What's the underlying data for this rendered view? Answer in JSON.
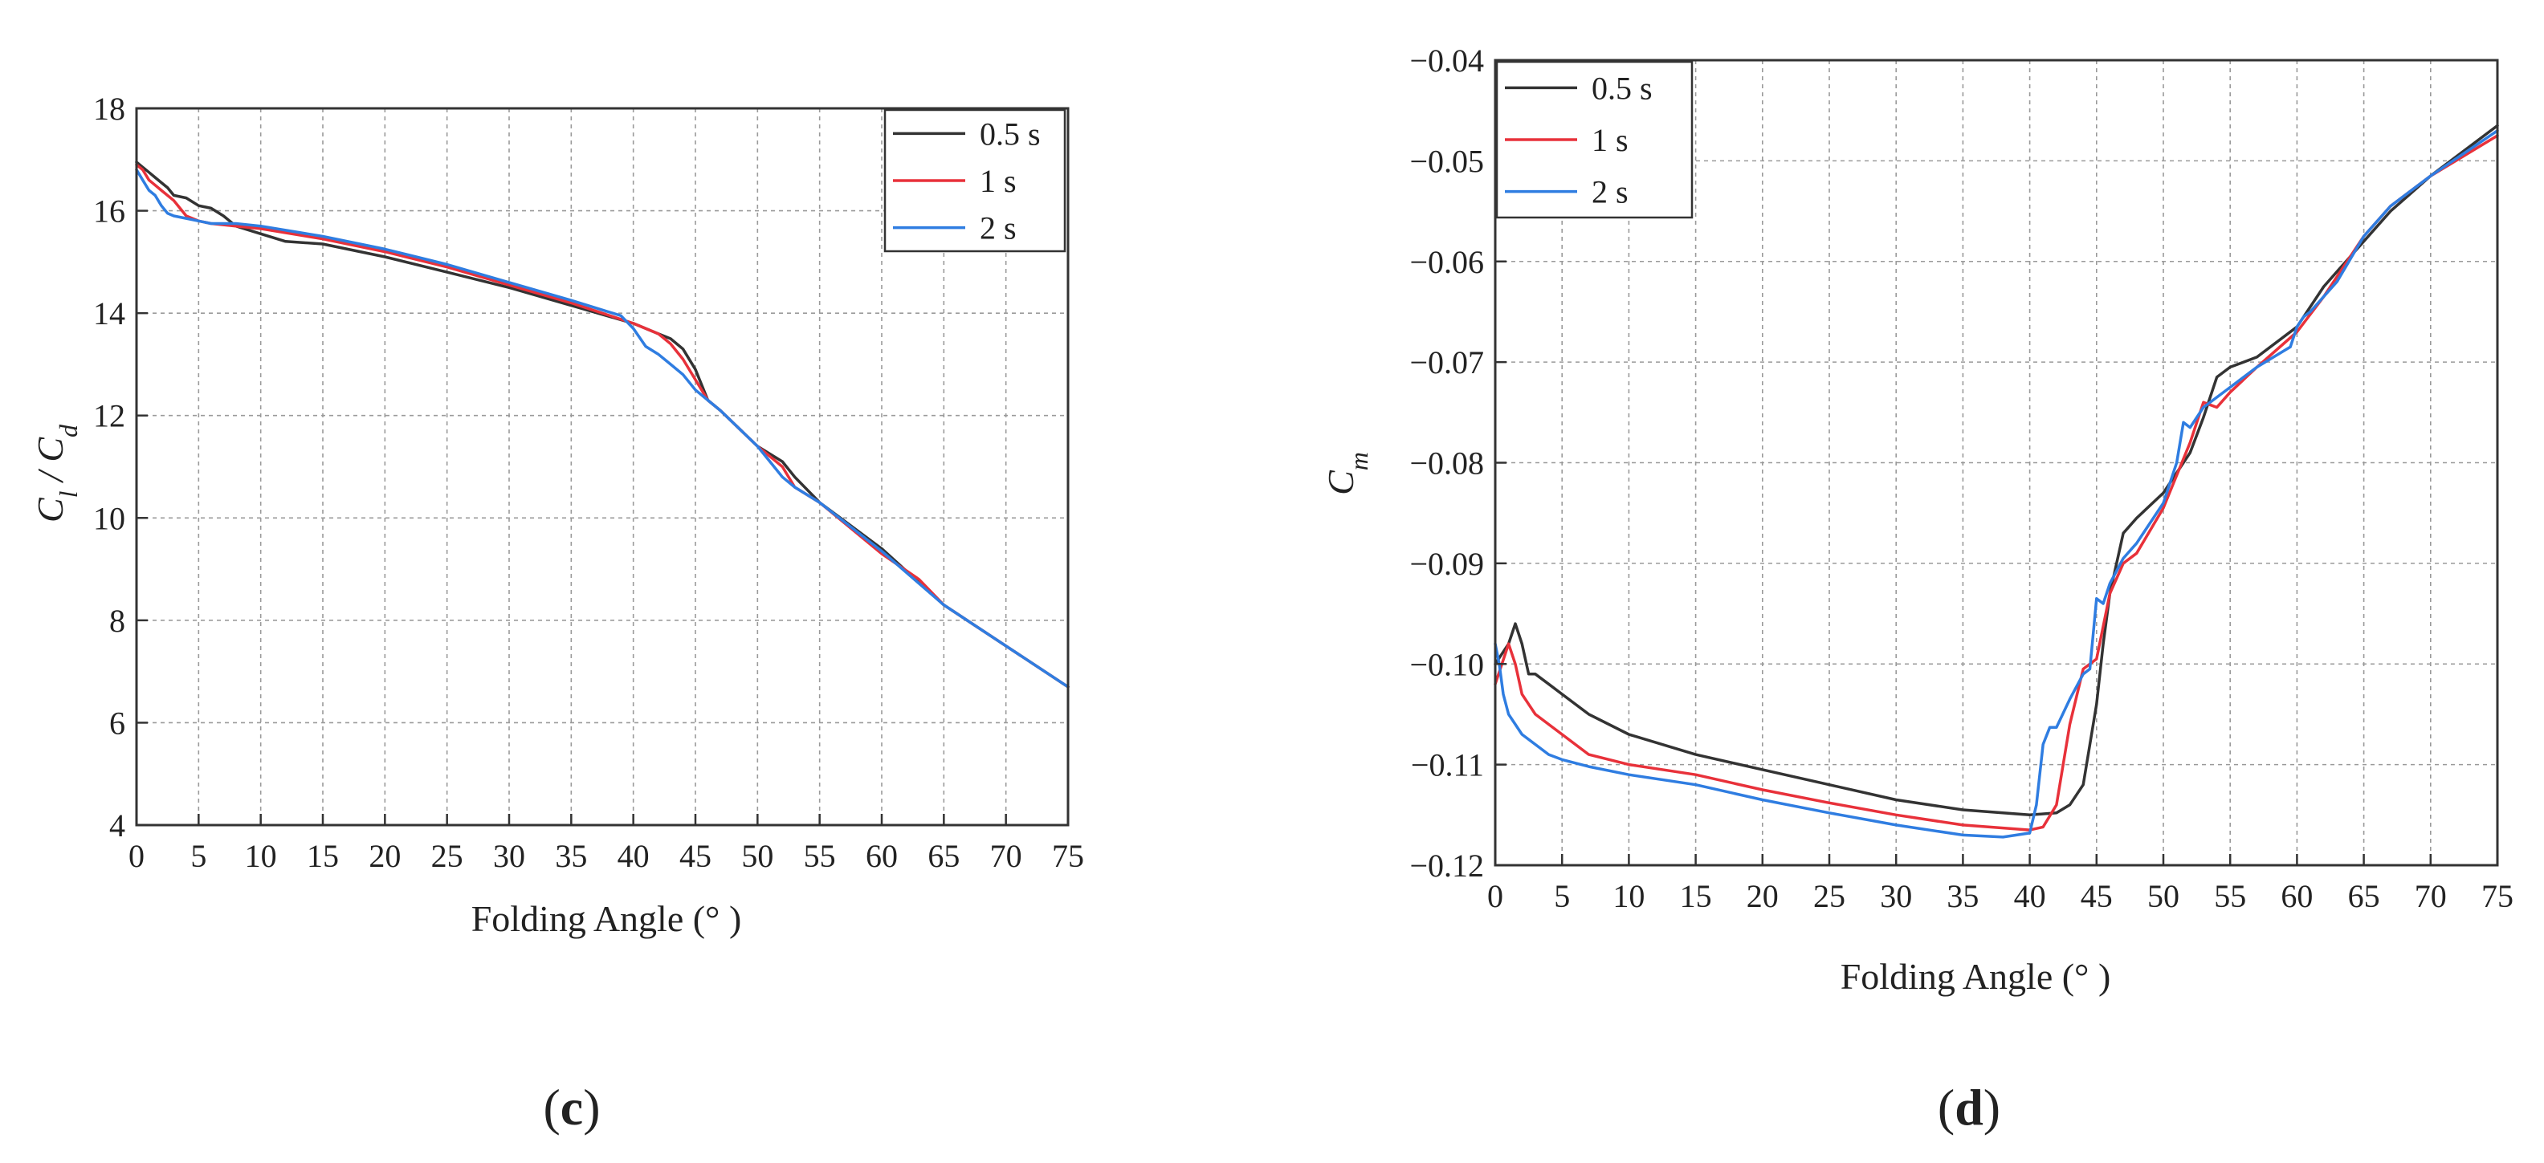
{
  "chart_data": [
    {
      "type": "line",
      "panel_label": "c",
      "xlabel": "Folding Angle (° )",
      "ylabel": "Cl / Cd",
      "ylabel_main": "C",
      "ylabel_sub1": "l",
      "ylabel_sep": " / C",
      "ylabel_sub2": "d",
      "xlim": [
        0,
        75
      ],
      "ylim": [
        4,
        18
      ],
      "xticks": [
        0,
        5,
        10,
        15,
        20,
        25,
        30,
        35,
        40,
        45,
        50,
        55,
        60,
        65,
        70,
        75
      ],
      "yticks": [
        4,
        6,
        8,
        10,
        12,
        14,
        16,
        18
      ],
      "grid": true,
      "legend_position": "top-right",
      "series": [
        {
          "name": "0.5 s",
          "color": "#333333",
          "x": [
            0,
            0.5,
            1,
            1.5,
            2,
            2.5,
            3,
            4,
            5,
            6,
            7,
            8,
            10,
            12,
            15,
            20,
            25,
            30,
            35,
            40,
            42,
            43,
            44,
            45,
            46,
            47,
            50,
            52,
            53,
            55,
            60,
            65,
            70,
            75
          ],
          "y": [
            16.95,
            16.85,
            16.75,
            16.65,
            16.55,
            16.45,
            16.3,
            16.25,
            16.1,
            16.05,
            15.9,
            15.7,
            15.55,
            15.4,
            15.35,
            15.1,
            14.8,
            14.5,
            14.15,
            13.8,
            13.6,
            13.5,
            13.3,
            12.9,
            12.3,
            12.1,
            11.4,
            11.1,
            10.8,
            10.3,
            9.4,
            8.3,
            7.5,
            6.7
          ]
        },
        {
          "name": "1 s",
          "color": "#e8313a",
          "x": [
            0,
            0.5,
            1,
            1.5,
            2,
            3,
            4,
            5,
            6,
            8,
            10,
            15,
            20,
            25,
            30,
            35,
            40,
            42,
            43,
            44,
            45,
            46,
            47,
            50,
            51,
            52,
            53,
            55,
            60,
            63,
            65,
            70,
            75
          ],
          "y": [
            16.9,
            16.8,
            16.6,
            16.5,
            16.4,
            16.2,
            15.9,
            15.8,
            15.75,
            15.7,
            15.65,
            15.45,
            15.2,
            14.9,
            14.55,
            14.2,
            13.8,
            13.6,
            13.4,
            13.1,
            12.7,
            12.3,
            12.1,
            11.4,
            11.2,
            11.0,
            10.6,
            10.3,
            9.3,
            8.8,
            8.3,
            7.5,
            6.7
          ]
        },
        {
          "name": "2 s",
          "color": "#2f7de1",
          "x": [
            0,
            0.5,
            1,
            1.5,
            2,
            2.5,
            3,
            4,
            5,
            6,
            8,
            10,
            15,
            20,
            25,
            30,
            35,
            39,
            40,
            41,
            42,
            43,
            44,
            45,
            46,
            47,
            50,
            51,
            52,
            53,
            55,
            60,
            65,
            70,
            75
          ],
          "y": [
            16.8,
            16.6,
            16.4,
            16.3,
            16.1,
            15.95,
            15.9,
            15.85,
            15.8,
            15.75,
            15.75,
            15.7,
            15.5,
            15.25,
            14.95,
            14.6,
            14.25,
            13.95,
            13.7,
            13.35,
            13.2,
            13.0,
            12.8,
            12.5,
            12.3,
            12.1,
            11.4,
            11.1,
            10.8,
            10.6,
            10.3,
            9.35,
            8.3,
            7.5,
            6.7
          ]
        }
      ]
    },
    {
      "type": "line",
      "panel_label": "d",
      "xlabel": "Folding Angle (° )",
      "ylabel": "Cm",
      "ylabel_main": "C",
      "ylabel_sub1": "m",
      "xlim": [
        0,
        75
      ],
      "ylim": [
        -0.12,
        -0.04
      ],
      "xticks": [
        0,
        5,
        10,
        15,
        20,
        25,
        30,
        35,
        40,
        45,
        50,
        55,
        60,
        65,
        70,
        75
      ],
      "yticks": [
        -0.12,
        -0.11,
        -0.1,
        -0.09,
        -0.08,
        -0.07,
        -0.06,
        -0.05,
        -0.04
      ],
      "ytick_labels": [
        "−0.12",
        "−0.11",
        "−0.10",
        "−0.09",
        "−0.08",
        "−0.07",
        "−0.06",
        "−0.05",
        "−0.04"
      ],
      "grid": true,
      "legend_position": "top-left",
      "series": [
        {
          "name": "0.5 s",
          "color": "#333333",
          "x": [
            0,
            0.5,
            1,
            1.5,
            2,
            2.5,
            3,
            4,
            5,
            7,
            10,
            15,
            20,
            25,
            30,
            35,
            40,
            42,
            43,
            44,
            44.5,
            45,
            45.5,
            46,
            47,
            48,
            50,
            52,
            53,
            54,
            55,
            57,
            60,
            62,
            63,
            65,
            67,
            70,
            75
          ],
          "y": [
            -0.1,
            -0.099,
            -0.098,
            -0.096,
            -0.098,
            -0.101,
            -0.101,
            -0.102,
            -0.103,
            -0.105,
            -0.107,
            -0.109,
            -0.1105,
            -0.112,
            -0.1135,
            -0.1145,
            -0.115,
            -0.1148,
            -0.114,
            -0.112,
            -0.108,
            -0.104,
            -0.098,
            -0.093,
            -0.087,
            -0.0855,
            -0.083,
            -0.079,
            -0.0755,
            -0.0715,
            -0.0705,
            -0.0695,
            -0.0665,
            -0.0625,
            -0.061,
            -0.058,
            -0.055,
            -0.0515,
            -0.0465
          ]
        },
        {
          "name": "1 s",
          "color": "#e8313a",
          "x": [
            0,
            0.5,
            1,
            1.5,
            2,
            3,
            4,
            5,
            7,
            10,
            15,
            20,
            25,
            30,
            35,
            40,
            41,
            42,
            43,
            44,
            45,
            46,
            47,
            48,
            50,
            52,
            53,
            54,
            55,
            57,
            60,
            62,
            65,
            67,
            70,
            75
          ],
          "y": [
            -0.102,
            -0.1,
            -0.098,
            -0.1,
            -0.103,
            -0.105,
            -0.106,
            -0.107,
            -0.109,
            -0.11,
            -0.111,
            -0.1125,
            -0.1138,
            -0.115,
            -0.116,
            -0.1165,
            -0.1162,
            -0.114,
            -0.106,
            -0.1005,
            -0.0995,
            -0.093,
            -0.09,
            -0.089,
            -0.0845,
            -0.078,
            -0.074,
            -0.0745,
            -0.073,
            -0.0705,
            -0.067,
            -0.0635,
            -0.0575,
            -0.0545,
            -0.0515,
            -0.0475
          ]
        },
        {
          "name": "2 s",
          "color": "#2f7de1",
          "x": [
            0,
            0.3,
            0.6,
            1,
            1.5,
            2,
            3,
            4,
            5,
            7,
            10,
            15,
            20,
            25,
            30,
            35,
            38,
            40,
            40.5,
            41,
            41.5,
            42,
            43,
            44,
            44.5,
            45,
            45.5,
            46,
            47,
            48,
            50,
            51,
            51.5,
            52,
            53,
            55,
            57,
            59.5,
            60,
            60.5,
            61,
            63,
            65,
            67,
            70,
            75
          ],
          "y": [
            -0.098,
            -0.1,
            -0.103,
            -0.105,
            -0.106,
            -0.107,
            -0.108,
            -0.109,
            -0.1095,
            -0.1102,
            -0.111,
            -0.112,
            -0.1135,
            -0.1148,
            -0.116,
            -0.117,
            -0.1172,
            -0.1168,
            -0.114,
            -0.108,
            -0.1063,
            -0.1063,
            -0.1035,
            -0.101,
            -0.1005,
            -0.0935,
            -0.094,
            -0.092,
            -0.0895,
            -0.088,
            -0.084,
            -0.08,
            -0.076,
            -0.0765,
            -0.0745,
            -0.0725,
            -0.0705,
            -0.0685,
            -0.0665,
            -0.0655,
            -0.065,
            -0.062,
            -0.0575,
            -0.0545,
            -0.0515,
            -0.047
          ]
        }
      ]
    }
  ]
}
